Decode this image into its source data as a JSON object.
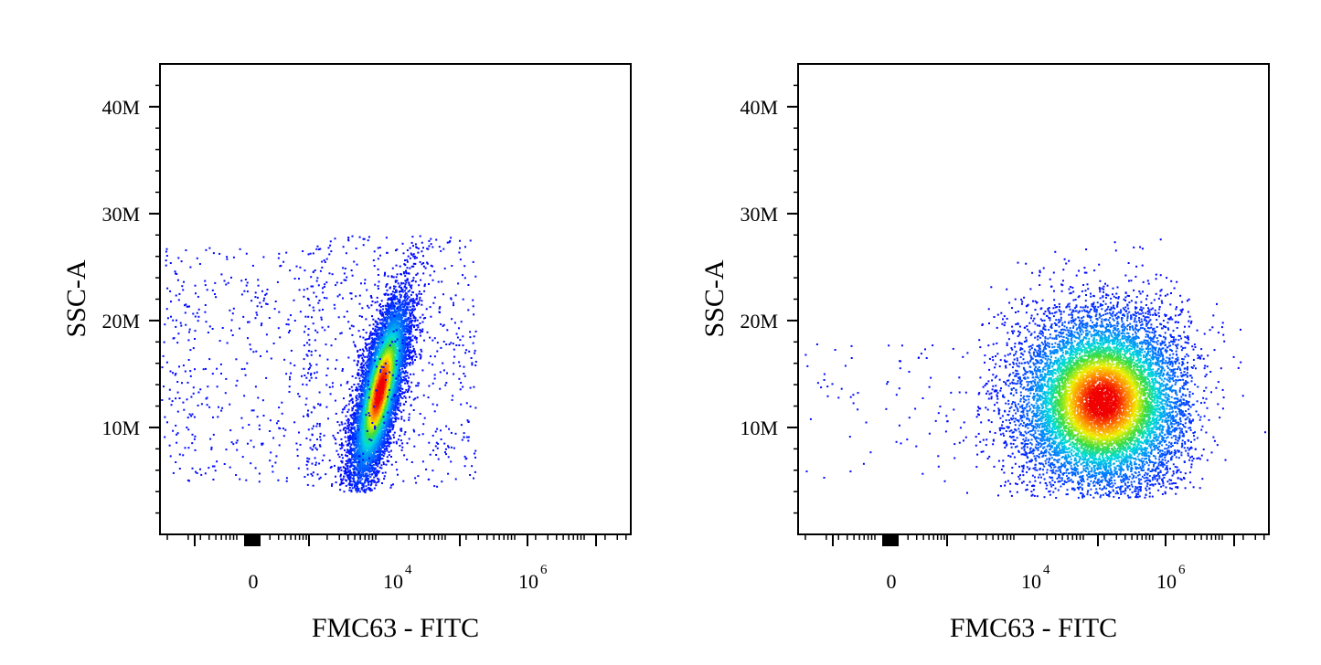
{
  "chart_data": [
    {
      "type": "scatter",
      "xlabel": "FMC63 - FITC",
      "ylabel": "SSC-A",
      "x_scale": "biexponential",
      "ylim": [
        0,
        44000000
      ],
      "y_ticks": [
        "10M",
        "20M",
        "30M",
        "40M"
      ],
      "y_tick_values": [
        10000000,
        20000000,
        30000000,
        40000000
      ],
      "x_ticks": [
        "0",
        "10",
        "10"
      ],
      "x_tick_sup": [
        "",
        "4",
        "6"
      ],
      "x_tick_values": [
        0,
        10000,
        1000000
      ],
      "grid": false,
      "color_mode": "density (blue → cyan → green → yellow → red)",
      "populations": [
        {
          "center_x": 4000,
          "center_y": 13500000,
          "spread": "narrow, elongated vertically",
          "y_range": [
            4500000,
            28000000
          ]
        },
        {
          "center_x": 0,
          "center_y": 14000000,
          "spread": "sparse background",
          "y_range": [
            5000000,
            28000000
          ]
        }
      ]
    },
    {
      "type": "scatter",
      "xlabel": "FMC63 - FITC",
      "ylabel": "SSC-A",
      "x_scale": "biexponential",
      "ylim": [
        0,
        44000000
      ],
      "y_ticks": [
        "10M",
        "20M",
        "30M",
        "40M"
      ],
      "y_tick_values": [
        10000000,
        20000000,
        30000000,
        40000000
      ],
      "x_ticks": [
        "0",
        "10",
        "10"
      ],
      "x_tick_sup": [
        "",
        "4",
        "6"
      ],
      "x_tick_values": [
        0,
        10000,
        1000000
      ],
      "grid": false,
      "color_mode": "density (blue → cyan → green → yellow → red)",
      "populations": [
        {
          "center_x": 100000,
          "center_y": 12500000,
          "spread": "broad cloud",
          "x_range": [
            3000,
            3000000
          ],
          "y_range": [
            3500000,
            28000000
          ]
        },
        {
          "center_x": 0,
          "center_y": 11000000,
          "spread": "sparse background",
          "y_range": [
            4500000,
            18000000
          ]
        }
      ]
    }
  ]
}
